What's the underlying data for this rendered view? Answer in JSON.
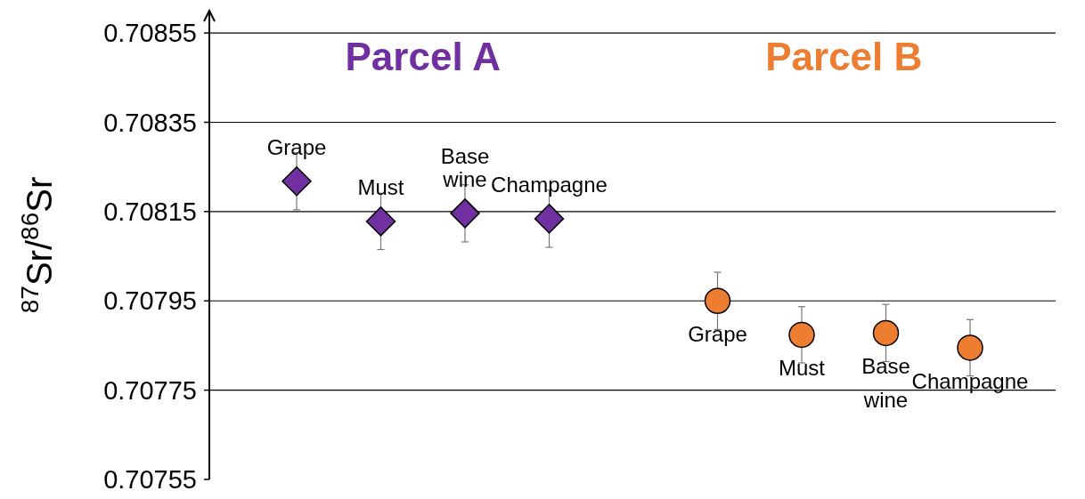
{
  "chart_data": {
    "type": "scatter",
    "ylabel": "$^{87}$Sr/$^{86}$Sr",
    "categories": [
      "Grape",
      "Must",
      "Base wine",
      "Champagne",
      null,
      "Grape",
      "Must",
      "Base wine",
      "Champagne"
    ],
    "series": [
      {
        "name": "Parcel A",
        "color": "#7030a0",
        "marker": "diamond",
        "values": [
          0.708218,
          0.708128,
          0.708146,
          0.708134,
          null,
          null,
          null,
          null,
          null
        ],
        "errors": [
          6.4e-05,
          6.3e-05,
          6.4e-05,
          6.4e-05,
          null,
          null,
          null,
          null,
          null
        ]
      },
      {
        "name": "Parcel B",
        "color": "#ed7d31",
        "marker": "circle",
        "values": [
          null,
          null,
          null,
          null,
          null,
          0.70795,
          0.707874,
          0.707878,
          0.707845
        ],
        "errors": [
          null,
          null,
          null,
          null,
          null,
          6.4e-05,
          6.3e-05,
          6.4e-05,
          6.3e-05
        ]
      }
    ],
    "ylim": [
      0.70755,
      0.7086
    ],
    "yticks": [
      0.70755,
      0.70775,
      0.70795,
      0.70815,
      0.70835,
      0.70855
    ],
    "grid": "y"
  }
}
